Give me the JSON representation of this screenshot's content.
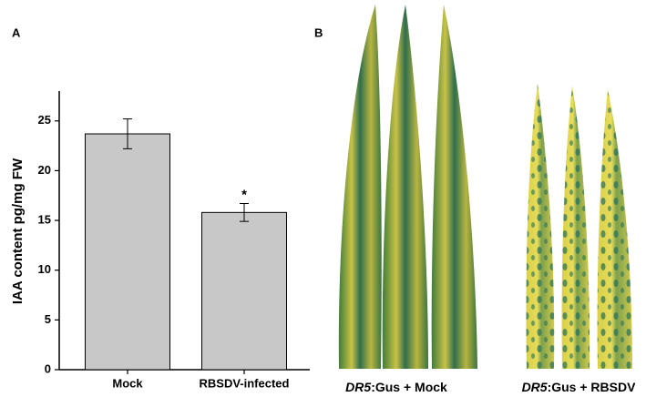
{
  "chart_data": {
    "type": "bar",
    "panel_label": "A",
    "ylabel": "IAA content pg/mg FW",
    "categories": [
      "Mock",
      "RBSDV-infected"
    ],
    "values": [
      23.7,
      15.8
    ],
    "errors": [
      1.5,
      0.9
    ],
    "annotations": [
      "",
      "*"
    ],
    "color": "#c8c8c8",
    "ylim": [
      0,
      28
    ],
    "yticks": [
      0,
      5,
      10,
      15,
      20,
      25
    ]
  },
  "photo_panel": {
    "panel_label": "B",
    "captions": [
      {
        "italic": "DR5",
        "text": ":Gus + Mock"
      },
      {
        "italic": "DR5",
        "text": ":Gus + RBSDV"
      }
    ]
  }
}
